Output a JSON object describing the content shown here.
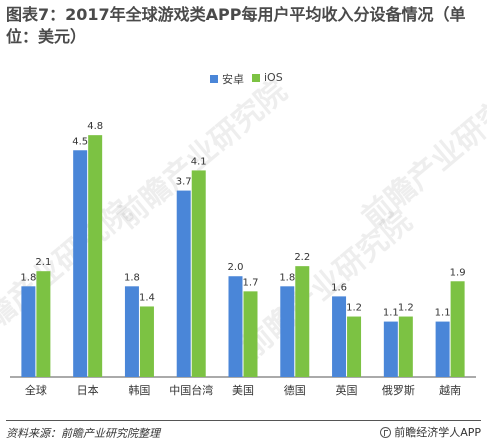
{
  "title": "图表7：2017年全球游戏类APP每用户平均收入分设备情况（单位：美元）",
  "source": "资料来源：前瞻产业研究院整理",
  "brand": "前瞻经济学人APP",
  "watermark": "前瞻产业研究院",
  "colors": {
    "android": "#4a86d8",
    "ios": "#7cc243",
    "axis": "#555555",
    "label": "#333333"
  },
  "chart_data": {
    "type": "bar",
    "categories": [
      "全球",
      "日本",
      "韩国",
      "中国台湾",
      "美国",
      "德国",
      "英国",
      "俄罗斯",
      "越南"
    ],
    "series": [
      {
        "name": "安卓",
        "values": [
          1.8,
          4.5,
          1.8,
          3.7,
          2.0,
          1.8,
          1.6,
          1.1,
          1.1
        ]
      },
      {
        "name": "iOS",
        "values": [
          2.1,
          4.8,
          1.4,
          4.1,
          1.7,
          2.2,
          1.2,
          1.2,
          1.9
        ]
      }
    ],
    "ylim": [
      0,
      5.2
    ],
    "grid": false,
    "legend": "top-center"
  }
}
